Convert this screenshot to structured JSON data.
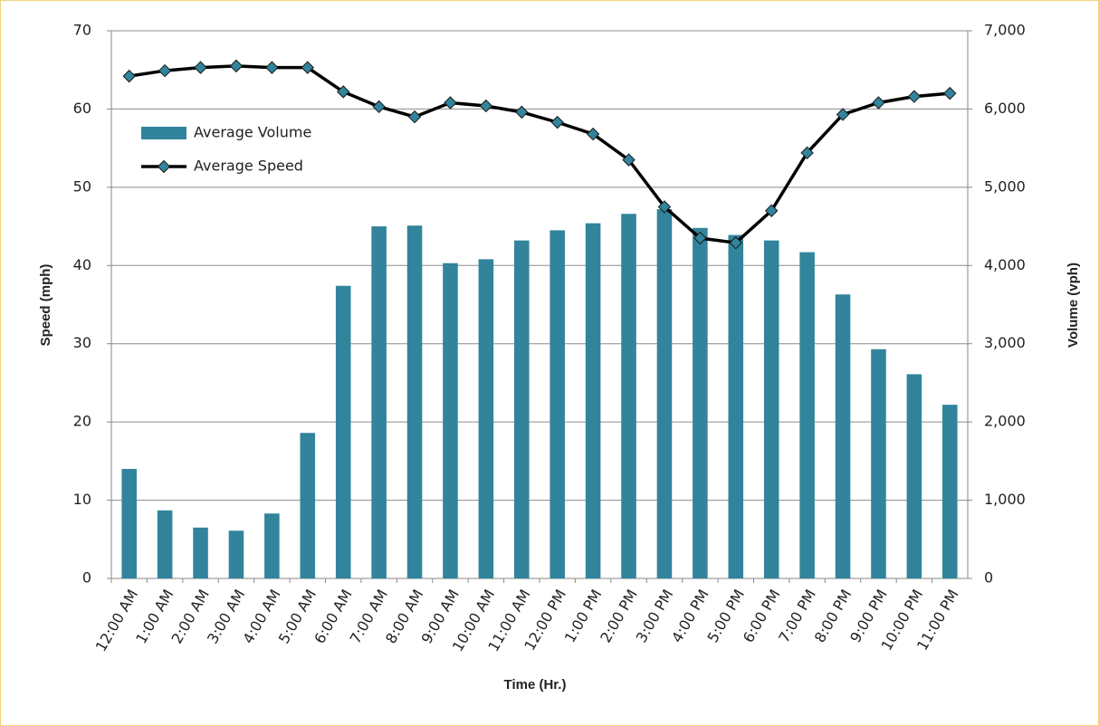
{
  "chart_data": {
    "type": "bar",
    "x_label": "Time (Hr.)",
    "y_label": "Speed (mph)",
    "y2_label": "Volume (vph)",
    "categories": [
      "12:00 AM",
      "1:00 AM",
      "2:00 AM",
      "3:00 AM",
      "4:00 AM",
      "5:00 AM",
      "6:00 AM",
      "7:00 AM",
      "8:00 AM",
      "9:00 AM",
      "10:00 AM",
      "11:00 AM",
      "12:00 PM",
      "1:00 PM",
      "2:00 PM",
      "3:00 PM",
      "4:00 PM",
      "5:00 PM",
      "6:00 PM",
      "7:00 PM",
      "8:00 PM",
      "9:00 PM",
      "10:00 PM",
      "11:00 PM"
    ],
    "series": [
      {
        "name": "Average Volume",
        "type": "bar",
        "axis": "y2",
        "color": "#31849b",
        "values": [
          1400,
          870,
          650,
          610,
          830,
          1860,
          3740,
          4500,
          4510,
          4030,
          4080,
          4320,
          4450,
          4540,
          4660,
          4720,
          4480,
          4390,
          4320,
          4170,
          3630,
          2930,
          2610,
          2220
        ]
      },
      {
        "name": "Average Speed",
        "type": "line",
        "color": "#000000",
        "marker_color": "#31849b",
        "values": [
          64.2,
          64.9,
          65.3,
          65.5,
          65.3,
          65.3,
          62.2,
          60.3,
          59.0,
          60.8,
          60.4,
          59.6,
          58.3,
          56.8,
          53.5,
          47.5,
          43.5,
          42.9,
          47.0,
          54.4,
          59.3,
          60.8,
          61.6,
          62.0
        ]
      }
    ],
    "ylim": [
      0,
      70
    ],
    "yticks": [
      0,
      10,
      20,
      30,
      40,
      50,
      60,
      70
    ],
    "y2lim": [
      0,
      7000
    ],
    "y2ticks": [
      0,
      {
        "value": 1000,
        "label": "1,000"
      },
      {
        "value": 2000,
        "label": "2,000"
      },
      {
        "value": 3000,
        "label": "3,000"
      },
      {
        "value": 4000,
        "label": "4,000"
      },
      {
        "value": 5000,
        "label": "5,000"
      },
      {
        "value": 6000,
        "label": "6,000"
      },
      {
        "value": 7000,
        "label": "7,000"
      }
    ],
    "grid": true,
    "legend": "upper left"
  }
}
